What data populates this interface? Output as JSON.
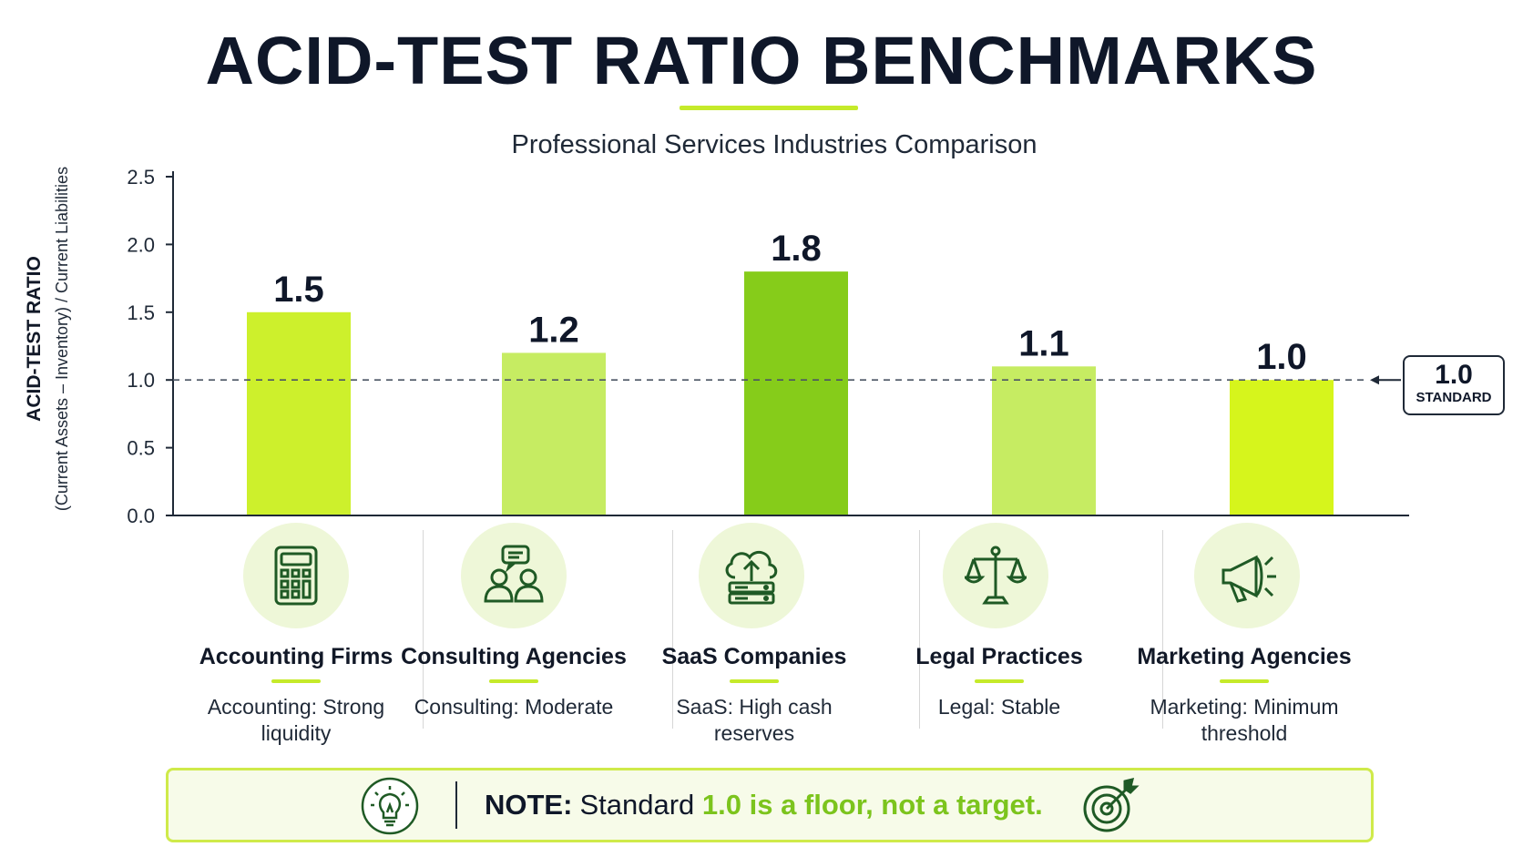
{
  "header": {
    "title": "ACID-TEST RATIO BENCHMARKS",
    "subtitle": "Professional Services Industries Comparison"
  },
  "chart_data": {
    "type": "bar",
    "title": "ACID-TEST RATIO BENCHMARKS",
    "subtitle": "Professional Services Industries Comparison",
    "ylabel": "ACID-TEST RATIO",
    "ylabel_sub": "(Current Assets – Inventory) / Current Liabilities",
    "xlabel": "",
    "categories": [
      "Accounting Firms",
      "Consulting Agencies",
      "SaaS Companies",
      "Legal Practices",
      "Marketing Agencies"
    ],
    "values": [
      1.5,
      1.2,
      1.8,
      1.1,
      1.0
    ],
    "value_labels": [
      "1.5",
      "1.2",
      "1.8",
      "1.1",
      "1.0"
    ],
    "ylim": [
      0,
      2.5
    ],
    "yticks": [
      "0.0",
      "0.5",
      "1.0",
      "1.5",
      "2.0",
      "2.5"
    ],
    "grid": false,
    "bar_colors": [
      "#cdf02c",
      "#c6ec62",
      "#86cc1a",
      "#c6ec62",
      "#d6f51c"
    ],
    "reference_line": {
      "value": 1.0,
      "label_value": "1.0",
      "label_text": "STANDARD",
      "style": "dashed"
    }
  },
  "categories_info": [
    {
      "name": "Accounting Firms",
      "icon": "calculator-icon",
      "desc": "Accounting: Strong liquidity"
    },
    {
      "name": "Consulting Agencies",
      "icon": "consulting-people-icon",
      "desc": "Consulting: Moderate"
    },
    {
      "name": "SaaS Companies",
      "icon": "cloud-server-icon",
      "desc": "SaaS: High cash reserves"
    },
    {
      "name": "Legal Practices",
      "icon": "scales-icon",
      "desc": "Legal: Stable"
    },
    {
      "name": "Marketing Agencies",
      "icon": "megaphone-icon",
      "desc": "Marketing: Minimum threshold"
    }
  ],
  "note": {
    "label": "NOTE:",
    "text_plain": "Standard",
    "text_highlight": "1.0 is a floor, not a target.",
    "left_icon": "lightbulb-icon",
    "right_icon": "target-icon"
  },
  "colors": {
    "accent": "#c5ea2a",
    "text_dark": "#0f1729",
    "icon_green": "#1f5a25",
    "highlight_text": "#7cc41d"
  }
}
